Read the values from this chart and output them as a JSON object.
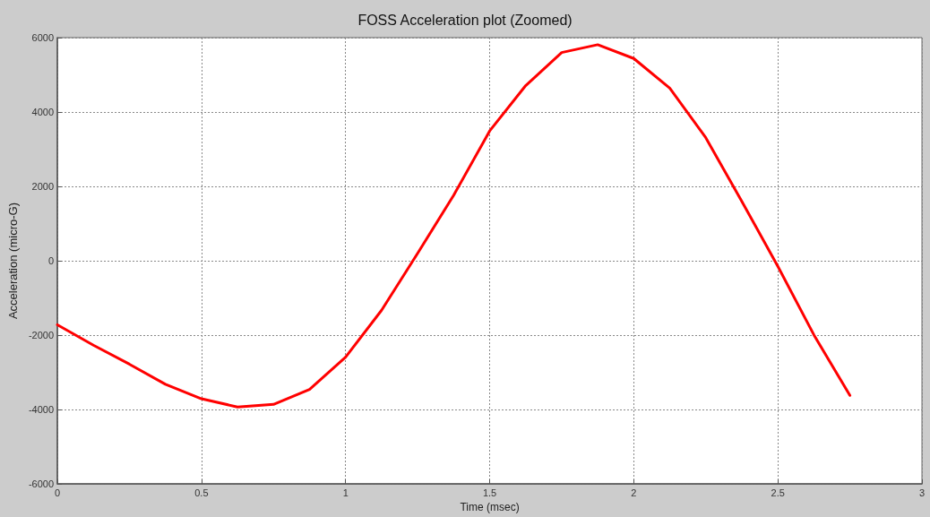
{
  "chart_data": {
    "type": "line",
    "title": "FOSS Acceleration plot (Zoomed)",
    "xlabel": "Time (msec)",
    "ylabel": "Acceleration (micro-G)",
    "x": [
      0,
      0.125,
      0.25,
      0.375,
      0.5,
      0.625,
      0.75,
      0.875,
      1,
      1.125,
      1.25,
      1.375,
      1.5,
      1.625,
      1.75,
      1.875,
      2,
      2.125,
      2.25,
      2.375,
      2.5,
      2.625,
      2.75
    ],
    "series": [
      {
        "color": "#ff0000",
        "values": [
          -1720,
          -2270,
          -2780,
          -3320,
          -3710,
          -3930,
          -3860,
          -3460,
          -2590,
          -1330,
          200,
          1760,
          3490,
          4710,
          5600,
          5810,
          5440,
          4640,
          3310,
          1600,
          -150,
          -1990,
          -3620
        ]
      }
    ],
    "xlim": [
      0,
      3
    ],
    "xticks": [
      0,
      0.5,
      1,
      1.5,
      2,
      2.5,
      3
    ],
    "ylim": [
      -6000,
      6000
    ],
    "yticks": [
      -6000,
      -4000,
      -2000,
      0,
      2000,
      4000,
      6000
    ],
    "grid": true,
    "marker": "none",
    "line_style": "solid"
  }
}
